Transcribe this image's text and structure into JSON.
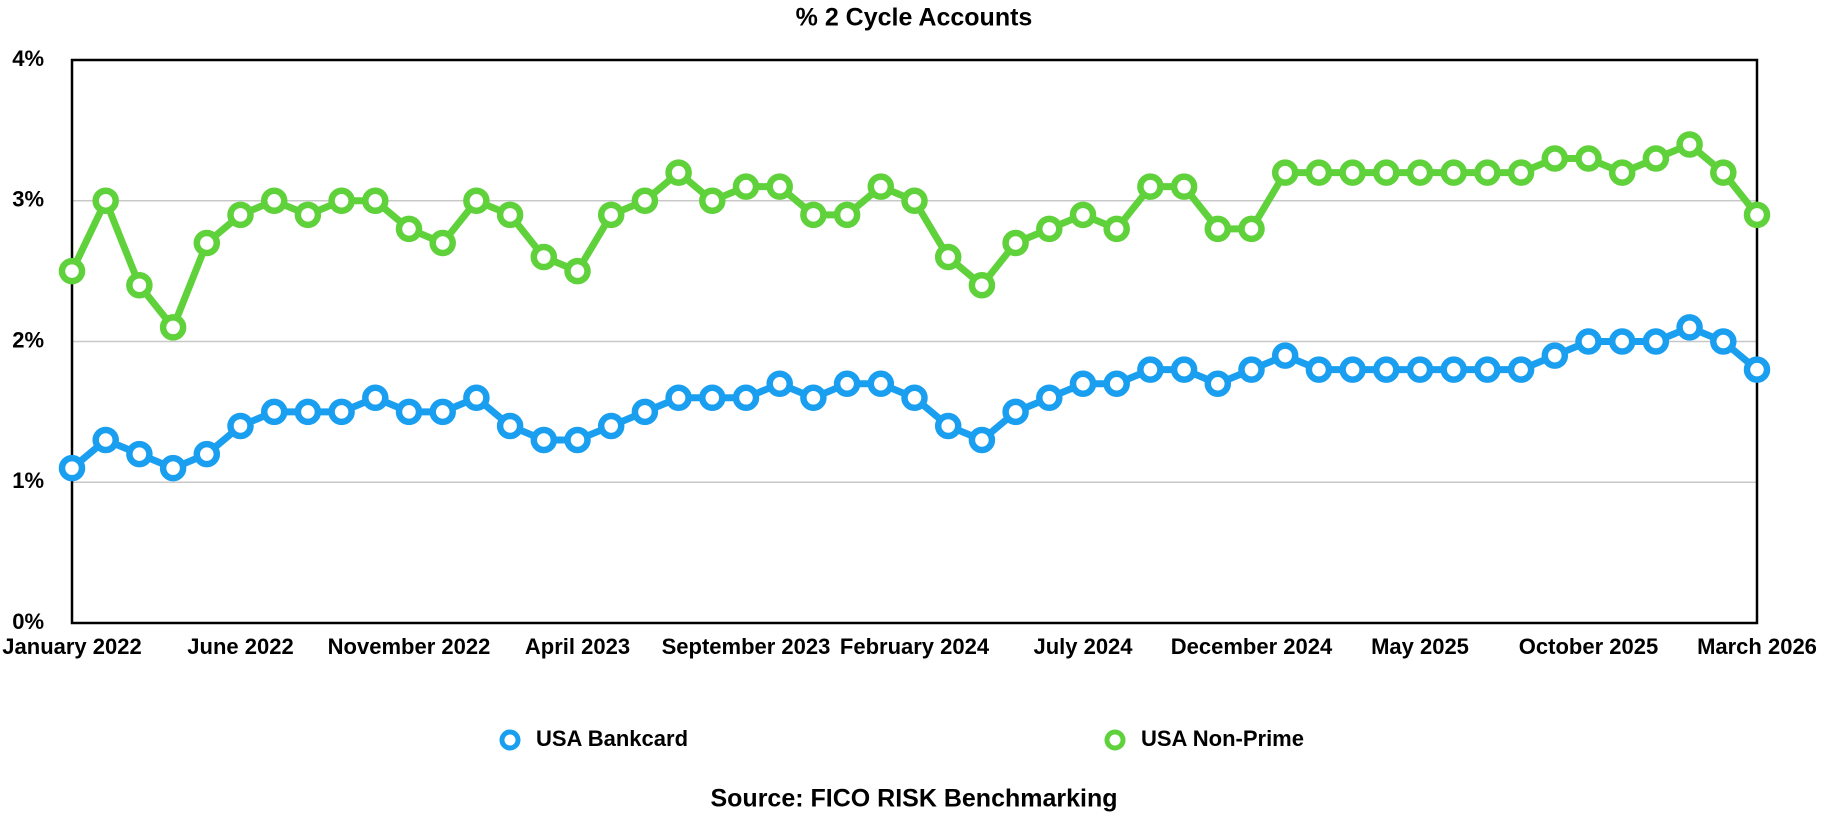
{
  "chart_data": {
    "type": "line",
    "title": "% 2 Cycle Accounts",
    "source": "Source: FICO RISK Benchmarking",
    "categories": [
      "January 2022",
      null,
      null,
      null,
      null,
      "June 2022",
      null,
      null,
      null,
      null,
      "November 2022",
      null,
      null,
      null,
      null,
      "April 2023",
      null,
      null,
      null,
      null,
      "September 2023",
      null,
      null,
      null,
      null,
      "February 2024",
      null,
      null,
      null,
      null,
      "July 2024",
      null,
      null,
      null,
      null,
      "December 2024",
      null,
      null,
      null,
      null,
      "May 2025",
      null,
      null,
      null,
      null,
      "October 2025",
      null,
      null,
      null,
      null,
      "March 2026"
    ],
    "series": [
      {
        "name": "USA Bankcard",
        "color": "#1a9ff0",
        "values": [
          1.1,
          1.3,
          1.2,
          1.1,
          1.2,
          1.4,
          1.5,
          1.5,
          1.5,
          1.6,
          1.5,
          1.5,
          1.6,
          1.4,
          1.3,
          1.3,
          1.4,
          1.5,
          1.6,
          1.6,
          1.6,
          1.7,
          1.6,
          1.7,
          1.7,
          1.6,
          1.4,
          1.3,
          1.5,
          1.6,
          1.7,
          1.7,
          1.8,
          1.8,
          1.7,
          1.8,
          1.9,
          1.8,
          1.8,
          1.8,
          1.8,
          1.8,
          1.8,
          1.8,
          1.9,
          2.0,
          2.0,
          2.0,
          2.1,
          2.0,
          1.8
        ]
      },
      {
        "name": "USA Non-Prime",
        "color": "#5fd13b",
        "values": [
          2.5,
          3.0,
          2.4,
          2.1,
          2.7,
          2.9,
          3.0,
          2.9,
          3.0,
          3.0,
          2.8,
          2.7,
          3.0,
          2.9,
          2.6,
          2.5,
          2.9,
          3.0,
          3.2,
          3.0,
          3.1,
          3.1,
          2.9,
          2.9,
          3.1,
          3.0,
          2.6,
          2.4,
          2.7,
          2.8,
          2.9,
          2.8,
          3.1,
          3.1,
          2.8,
          2.8,
          3.2,
          3.2,
          3.2,
          3.2,
          3.2,
          3.2,
          3.2,
          3.2,
          3.3,
          3.3,
          3.2,
          3.3,
          3.4,
          3.2,
          2.9
        ]
      }
    ],
    "ylim": [
      0,
      4
    ],
    "yticks": [
      {
        "value": 0,
        "label": "0%"
      },
      {
        "value": 1,
        "label": "1%"
      },
      {
        "value": 2,
        "label": "2%"
      },
      {
        "value": 3,
        "label": "3%"
      },
      {
        "value": 4,
        "label": "4%"
      }
    ],
    "grid": true
  }
}
